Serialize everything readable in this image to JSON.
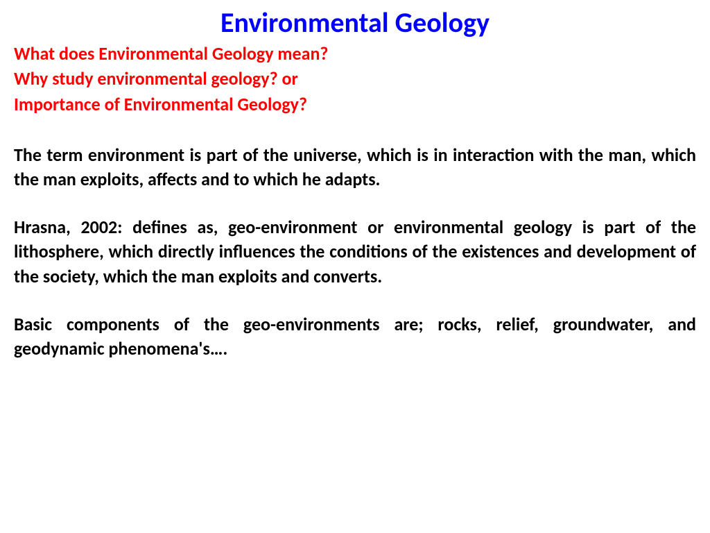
{
  "title": "Environmental Geology",
  "subheadings": [
    "What does Environmental Geology mean?",
    "Why study environmental geology? or",
    "Importance of Environmental Geology?"
  ],
  "paragraphs": [
    "The term environment is part of the universe, which is in interaction with the man, which the man exploits, affects and to which he adapts.",
    "Hrasna, 2002: defines as, geo-environment or environmental geology is part of the lithosphere,  which directly influences the conditions of the existences and development of the society, which the man exploits and converts.",
    "Basic components of the geo-environments are; rocks, relief, groundwater, and geodynamic phenomena's…."
  ],
  "colors": {
    "title": "#0000ff",
    "subheading": "#ff0000",
    "body": "#000000",
    "background": "#ffffff"
  }
}
